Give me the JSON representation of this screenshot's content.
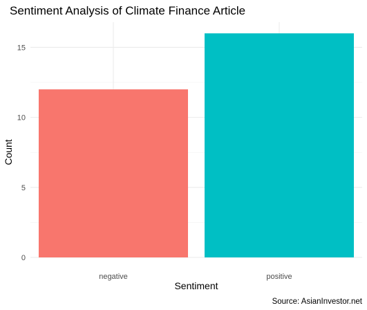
{
  "chart_data": {
    "type": "bar",
    "title": "Sentiment Analysis of Climate Finance Article",
    "xlabel": "Sentiment",
    "ylabel": "Count",
    "caption": "Source: AsianInvestor.net",
    "categories": [
      "negative",
      "positive"
    ],
    "values": [
      12,
      16
    ],
    "colors": [
      "#F8766D",
      "#00BFC4"
    ],
    "ylim": [
      0,
      16.8
    ],
    "yticks": [
      0,
      5,
      10,
      15
    ],
    "grid": true,
    "legend": "none"
  }
}
